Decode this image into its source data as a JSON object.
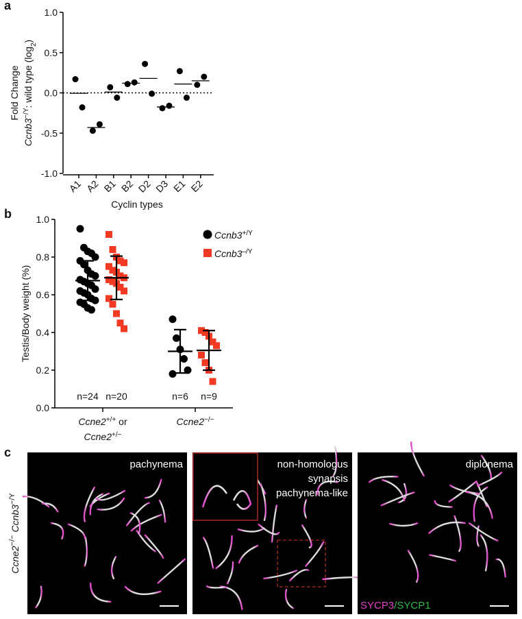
{
  "chart_data": [
    {
      "type": "dot",
      "panel": "a",
      "ylabel": [
        [
          "Fold Change"
        ],
        [
          "Ccnb3",
          "−/Y",
          ": wild type (log",
          "2",
          ")"
        ]
      ],
      "xlabel": "Cyclin types",
      "categories": [
        "A1",
        "A2",
        "B1",
        "B2",
        "D2",
        "D3",
        "E1",
        "E2"
      ],
      "points": [
        [
          0.17,
          -0.18
        ],
        [
          -0.47,
          -0.39
        ],
        [
          0.07,
          -0.06
        ],
        [
          0.11,
          0.13
        ],
        [
          0.36,
          -0.01
        ],
        [
          -0.19,
          -0.16
        ],
        [
          0.27,
          -0.06
        ],
        [
          0.1,
          0.2
        ]
      ],
      "means": [
        -0.005,
        -0.43,
        0.01,
        0.12,
        0.18,
        -0.175,
        0.11,
        0.15
      ],
      "reference_line": 0,
      "color": "#000000",
      "ylim": [
        -1,
        1
      ],
      "yticks": [
        {
          "value": -1,
          "label": "-1.0"
        },
        {
          "value": -0.5,
          "label": "-0.5"
        },
        {
          "value": 0,
          "label": "0.0"
        },
        {
          "value": 0.5,
          "label": "0.5"
        },
        {
          "value": 1,
          "label": "1.0"
        }
      ]
    },
    {
      "type": "scatter-dot",
      "panel": "b",
      "ylabel": "Testis/Body weight (%)",
      "categories": [
        [
          [
            "Ccne2",
            "+/+",
            " or"
          ],
          [
            "Ccne2",
            "+/−"
          ]
        ],
        [
          [
            "Ccne2",
            "−/−"
          ]
        ]
      ],
      "series": [
        {
          "name": [
            "Ccnb3",
            "+/Y"
          ],
          "color": "#000000",
          "marker": "circle",
          "values": [
            [
              0.95,
              0.85,
              0.83,
              0.82,
              0.8,
              0.78,
              0.76,
              0.73,
              0.71,
              0.7,
              0.68,
              0.67,
              0.66,
              0.65,
              0.63,
              0.62,
              0.61,
              0.6,
              0.58,
              0.57,
              0.56,
              0.55,
              0.53,
              0.52
            ],
            [
              0.47,
              0.37,
              0.31,
              0.26,
              0.2,
              0.18
            ]
          ],
          "means": [
            0.675,
            0.3
          ],
          "sd": [
            0.105,
            0.115
          ],
          "n_labels": [
            "n=24",
            "n=6"
          ]
        },
        {
          "name": [
            "Ccnb3",
            "–/Y"
          ],
          "color": "#f03a23",
          "marker": "square",
          "values": [
            [
              0.92,
              0.84,
              0.8,
              0.78,
              0.77,
              0.75,
              0.73,
              0.72,
              0.7,
              0.69,
              0.68,
              0.67,
              0.66,
              0.64,
              0.62,
              0.58,
              0.55,
              0.5,
              0.45,
              0.42
            ],
            [
              0.41,
              0.4,
              0.38,
              0.35,
              0.33,
              0.28,
              0.24,
              0.2,
              0.14
            ]
          ],
          "means": [
            0.69,
            0.305
          ],
          "sd": [
            0.115,
            0.105
          ],
          "n_labels": [
            "n=20",
            "n=9"
          ]
        }
      ],
      "ylim": [
        0,
        1
      ],
      "yticks": [
        {
          "value": 0,
          "label": "0.0"
        },
        {
          "value": 0.2,
          "label": "0.2"
        },
        {
          "value": 0.4,
          "label": "0.4"
        },
        {
          "value": 0.6,
          "label": "0.6"
        },
        {
          "value": 0.8,
          "label": "0.8"
        },
        {
          "value": 1,
          "label": "1.0"
        }
      ],
      "legend": "top-right"
    }
  ],
  "panel_c": {
    "label": "c",
    "row_label": [
      [
        "Ccne2",
        "−/−"
      ],
      [
        " Ccnb3",
        "−/Y"
      ]
    ],
    "images": [
      {
        "labels": [
          "pachynema"
        ]
      },
      {
        "labels": [
          "non-homologus",
          "synapsis",
          "pachynema-like"
        ]
      },
      {
        "labels": [
          "diplonema"
        ],
        "stain": [
          "SYCP3",
          "/SYCP1"
        ]
      }
    ]
  }
}
